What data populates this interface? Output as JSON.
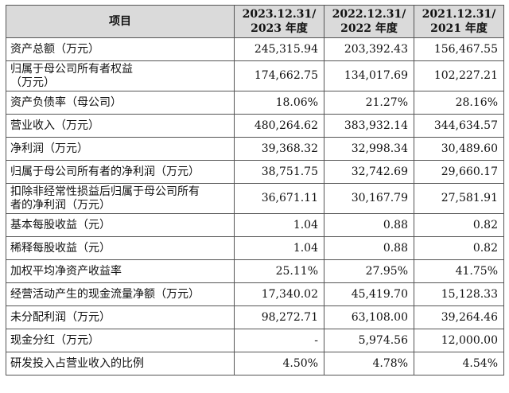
{
  "table": {
    "header": {
      "item": "项目",
      "columns": [
        [
          "2023.12.31/",
          "2023 年度"
        ],
        [
          "2022.12.31/",
          "2022 年度"
        ],
        [
          "2021.12.31/",
          "2021 年度"
        ]
      ]
    },
    "rows": [
      {
        "label": [
          "资产总额（万元）"
        ],
        "values": [
          "245,315.94",
          "203,392.43",
          "156,467.55"
        ]
      },
      {
        "label": [
          "归属于母公司所有者权益",
          "（万元）"
        ],
        "values": [
          "174,662.75",
          "134,017.69",
          "102,227.21"
        ]
      },
      {
        "label": [
          "资产负债率（母公司）"
        ],
        "values": [
          "18.06%",
          "21.27%",
          "28.16%"
        ]
      },
      {
        "label": [
          "营业收入（万元）"
        ],
        "values": [
          "480,264.62",
          "383,932.14",
          "344,634.57"
        ]
      },
      {
        "label": [
          "净利润（万元）"
        ],
        "values": [
          "39,368.32",
          "32,998.34",
          "30,489.60"
        ]
      },
      {
        "label": [
          "归属于母公司所有者的净利润（万元）"
        ],
        "values": [
          "38,751.75",
          "32,742.69",
          "29,660.17"
        ]
      },
      {
        "label": [
          "扣除非经常性损益后归属于母公司所有",
          "者的净利润（万元）"
        ],
        "values": [
          "36,671.11",
          "30,167.79",
          "27,581.91"
        ]
      },
      {
        "label": [
          "基本每股收益（元）"
        ],
        "values": [
          "1.04",
          "0.88",
          "0.82"
        ]
      },
      {
        "label": [
          "稀释每股收益（元）"
        ],
        "values": [
          "1.04",
          "0.88",
          "0.82"
        ]
      },
      {
        "label": [
          "加权平均净资产收益率"
        ],
        "values": [
          "25.11%",
          "27.95%",
          "41.75%"
        ]
      },
      {
        "label": [
          "经营活动产生的现金流量净额（万元）"
        ],
        "values": [
          "17,340.02",
          "45,419.70",
          "15,128.33"
        ]
      },
      {
        "label": [
          "未分配利润（万元）"
        ],
        "values": [
          "98,272.71",
          "63,108.00",
          "39,264.46"
        ]
      },
      {
        "label": [
          "现金分红（万元）"
        ],
        "values": [
          "-",
          "5,974.56",
          "12,000.00"
        ]
      },
      {
        "label": [
          "研发投入占营业收入的比例"
        ],
        "values": [
          "4.50%",
          "4.78%",
          "4.54%"
        ]
      }
    ]
  }
}
